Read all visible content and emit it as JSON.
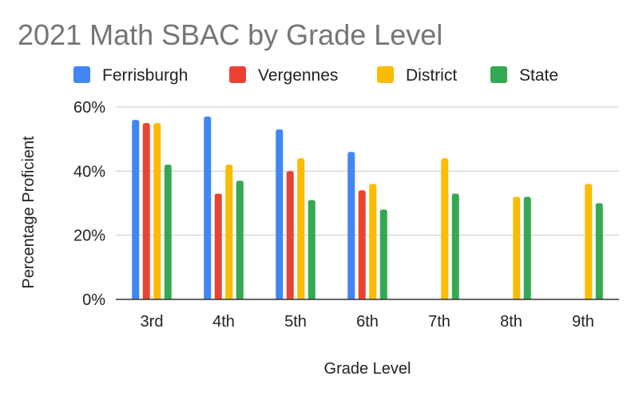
{
  "chart_data": {
    "type": "bar",
    "title": "2021 Math SBAC by Grade Level",
    "xlabel": "Grade Level",
    "ylabel": "Percentage Proficient",
    "categories": [
      "3rd",
      "4th",
      "5th",
      "6th",
      "7th",
      "8th",
      "9th"
    ],
    "ylim": [
      0,
      0.6
    ],
    "yticks": [
      "0%",
      "20%",
      "40%",
      "60%"
    ],
    "grid": true,
    "legend_position": "top",
    "series": [
      {
        "name": "Ferrisburgh",
        "color": "#4285f4",
        "values": [
          0.56,
          0.57,
          0.53,
          0.46,
          null,
          null,
          null
        ]
      },
      {
        "name": "Vergennes",
        "color": "#ea4335",
        "values": [
          0.55,
          0.33,
          0.4,
          0.34,
          null,
          null,
          null
        ]
      },
      {
        "name": "District",
        "color": "#fbbc04",
        "values": [
          0.55,
          0.42,
          0.44,
          0.36,
          0.44,
          0.32,
          0.36
        ]
      },
      {
        "name": "State",
        "color": "#34a853",
        "values": [
          0.42,
          0.37,
          0.31,
          0.28,
          0.33,
          0.32,
          0.3
        ]
      }
    ]
  }
}
